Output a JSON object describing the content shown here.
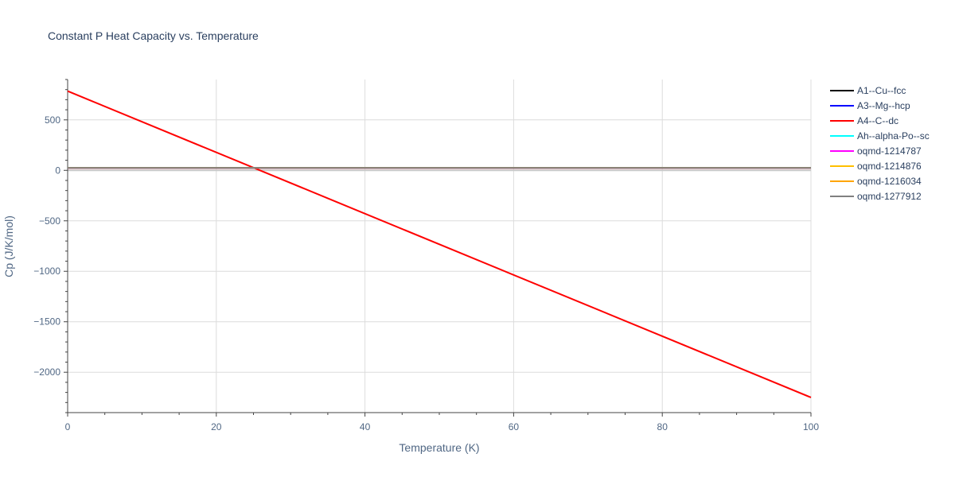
{
  "chart_data": {
    "type": "line",
    "title": "Constant P Heat Capacity vs. Temperature",
    "xlabel": "Temperature (K)",
    "ylabel": "Cp (J/K/mol)",
    "xlim": [
      0,
      100
    ],
    "ylim": [
      -2400,
      900
    ],
    "xticks": [
      0,
      20,
      40,
      60,
      80,
      100
    ],
    "xtick_labels": [
      "0",
      "20",
      "40",
      "60",
      "80",
      "100"
    ],
    "yticks": [
      500,
      0,
      -500,
      -1000,
      -1500,
      -2000
    ],
    "ytick_labels": [
      "500",
      "0",
      "−500",
      "−1000",
      "−1500",
      "−2000"
    ],
    "grid": true,
    "legend_position": "top-right",
    "series": [
      {
        "name": "A1--Cu--fcc",
        "color": "#000000",
        "x": [
          0,
          100
        ],
        "y": [
          24,
          24
        ]
      },
      {
        "name": "A3--Mg--hcp",
        "color": "#0000ff",
        "x": [
          0,
          100
        ],
        "y": [
          25,
          25
        ]
      },
      {
        "name": "A4--C--dc",
        "color": "#ff0000",
        "x": [
          0,
          100
        ],
        "y": [
          785,
          -2250
        ]
      },
      {
        "name": "Ah--alpha-Po--sc",
        "color": "#00ffff",
        "x": [
          0,
          100
        ],
        "y": [
          26,
          26
        ]
      },
      {
        "name": "oqmd-1214787",
        "color": "#ff00ff",
        "x": [
          0,
          100
        ],
        "y": [
          24,
          24
        ]
      },
      {
        "name": "oqmd-1214876",
        "color": "#ffbf00",
        "x": [
          0,
          100
        ],
        "y": [
          25,
          25
        ]
      },
      {
        "name": "oqmd-1216034",
        "color": "#ffa500",
        "x": [
          0,
          100
        ],
        "y": [
          25,
          25
        ]
      },
      {
        "name": "oqmd-1277912",
        "color": "#808080",
        "x": [
          0,
          100
        ],
        "y": [
          25,
          25
        ]
      }
    ]
  }
}
